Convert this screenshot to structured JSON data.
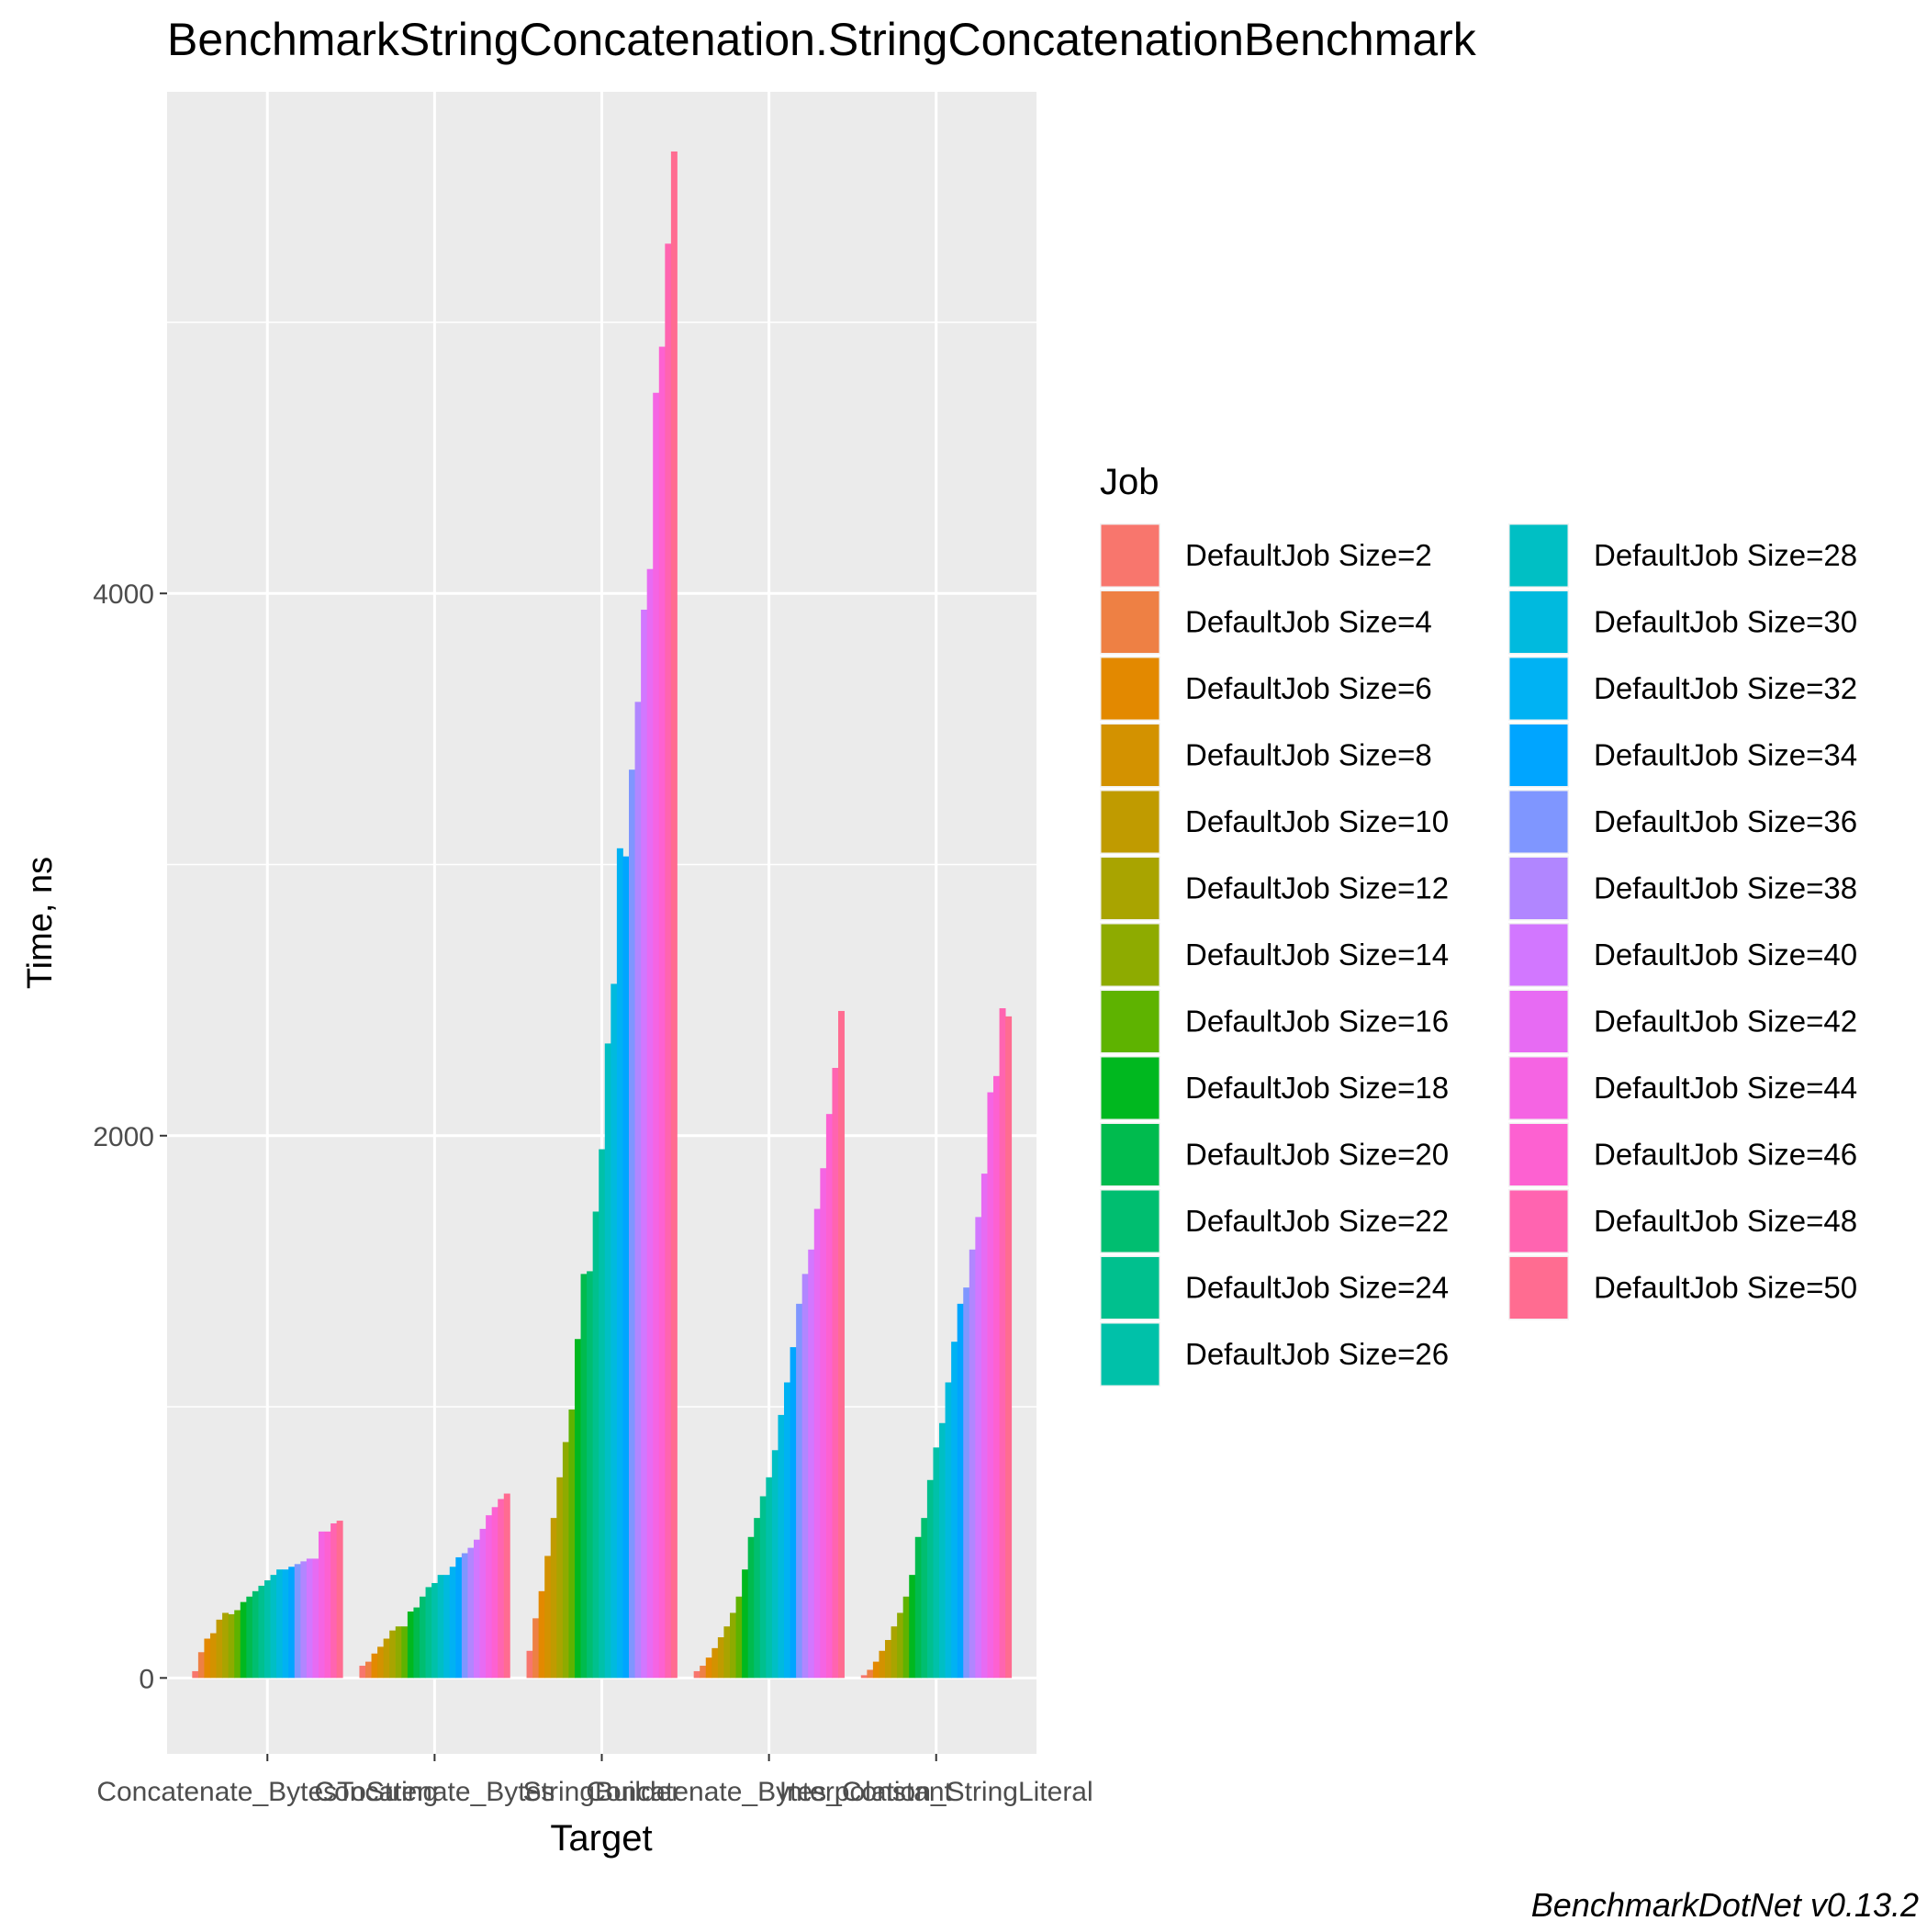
{
  "chart_data": {
    "type": "bar",
    "title": "BenchmarkStringConcatenation.StringConcatenationBenchmark",
    "xlabel": "Target",
    "ylabel": "Time, ns",
    "caption": "BenchmarkDotNet v0.13.2",
    "legend_title": "Job",
    "legend_position": "right",
    "grid": true,
    "ylim": [
      -280,
      5850
    ],
    "yticks": [
      0,
      2000,
      4000
    ],
    "categories": [
      "Concatenate_BytesToString",
      "Concatenate_Bytes",
      "StringBuilder",
      "Concatenate_Bytes_Constant",
      "Interpolation_StringLiteral"
    ],
    "series": [
      {
        "name": "DefaultJob Size=2",
        "color": "#F8766D",
        "values": [
          25,
          45,
          100,
          25,
          10
        ]
      },
      {
        "name": "DefaultJob Size=4",
        "color": "#EE8044",
        "values": [
          95,
          60,
          220,
          45,
          30
        ]
      },
      {
        "name": "DefaultJob Size=6",
        "color": "#E38900",
        "values": [
          145,
          90,
          320,
          75,
          60
        ]
      },
      {
        "name": "DefaultJob Size=8",
        "color": "#D39200",
        "values": [
          165,
          115,
          450,
          110,
          100
        ]
      },
      {
        "name": "DefaultJob Size=10",
        "color": "#C09B00",
        "values": [
          215,
          145,
          590,
          150,
          140
        ]
      },
      {
        "name": "DefaultJob Size=12",
        "color": "#A9A400",
        "values": [
          240,
          175,
          740,
          190,
          190
        ]
      },
      {
        "name": "DefaultJob Size=14",
        "color": "#8EAB00",
        "values": [
          235,
          190,
          870,
          240,
          240
        ]
      },
      {
        "name": "DefaultJob Size=16",
        "color": "#5EB300",
        "values": [
          250,
          190,
          990,
          300,
          300
        ]
      },
      {
        "name": "DefaultJob Size=18",
        "color": "#00B81F",
        "values": [
          280,
          245,
          1250,
          400,
          380
        ]
      },
      {
        "name": "DefaultJob Size=20",
        "color": "#00BB4E",
        "values": [
          300,
          260,
          1490,
          520,
          520
        ]
      },
      {
        "name": "DefaultJob Size=22",
        "color": "#00BE70",
        "values": [
          320,
          300,
          1500,
          590,
          590
        ]
      },
      {
        "name": "DefaultJob Size=24",
        "color": "#00C08E",
        "values": [
          340,
          335,
          1720,
          670,
          730
        ]
      },
      {
        "name": "DefaultJob Size=26",
        "color": "#00C1A9",
        "values": [
          360,
          350,
          1950,
          740,
          850
        ]
      },
      {
        "name": "DefaultJob Size=28",
        "color": "#00BFC4",
        "values": [
          380,
          380,
          2340,
          840,
          940
        ]
      },
      {
        "name": "DefaultJob Size=30",
        "color": "#00BADE",
        "values": [
          400,
          380,
          2560,
          970,
          1090
        ]
      },
      {
        "name": "DefaultJob Size=32",
        "color": "#00B2F3",
        "values": [
          400,
          410,
          3060,
          1090,
          1240
        ]
      },
      {
        "name": "DefaultJob Size=34",
        "color": "#00A5FF",
        "values": [
          410,
          445,
          3030,
          1220,
          1380
        ]
      },
      {
        "name": "DefaultJob Size=36",
        "color": "#7F96FF",
        "values": [
          420,
          460,
          3350,
          1380,
          1440
        ]
      },
      {
        "name": "DefaultJob Size=38",
        "color": "#B186FF",
        "values": [
          430,
          480,
          3600,
          1490,
          1580
        ]
      },
      {
        "name": "DefaultJob Size=40",
        "color": "#D277FF",
        "values": [
          440,
          510,
          3940,
          1580,
          1700
        ]
      },
      {
        "name": "DefaultJob Size=42",
        "color": "#E76BF3",
        "values": [
          440,
          550,
          4090,
          1730,
          1860
        ]
      },
      {
        "name": "DefaultJob Size=44",
        "color": "#F564E3",
        "values": [
          540,
          600,
          4740,
          1880,
          2160
        ]
      },
      {
        "name": "DefaultJob Size=46",
        "color": "#FD61D1",
        "values": [
          540,
          630,
          4910,
          2080,
          2220
        ]
      },
      {
        "name": "DefaultJob Size=48",
        "color": "#FF64B0",
        "values": [
          570,
          660,
          5290,
          2250,
          2470
        ]
      },
      {
        "name": "DefaultJob Size=50",
        "color": "#FF6C91",
        "values": [
          580,
          680,
          5630,
          2460,
          2440
        ]
      }
    ]
  }
}
